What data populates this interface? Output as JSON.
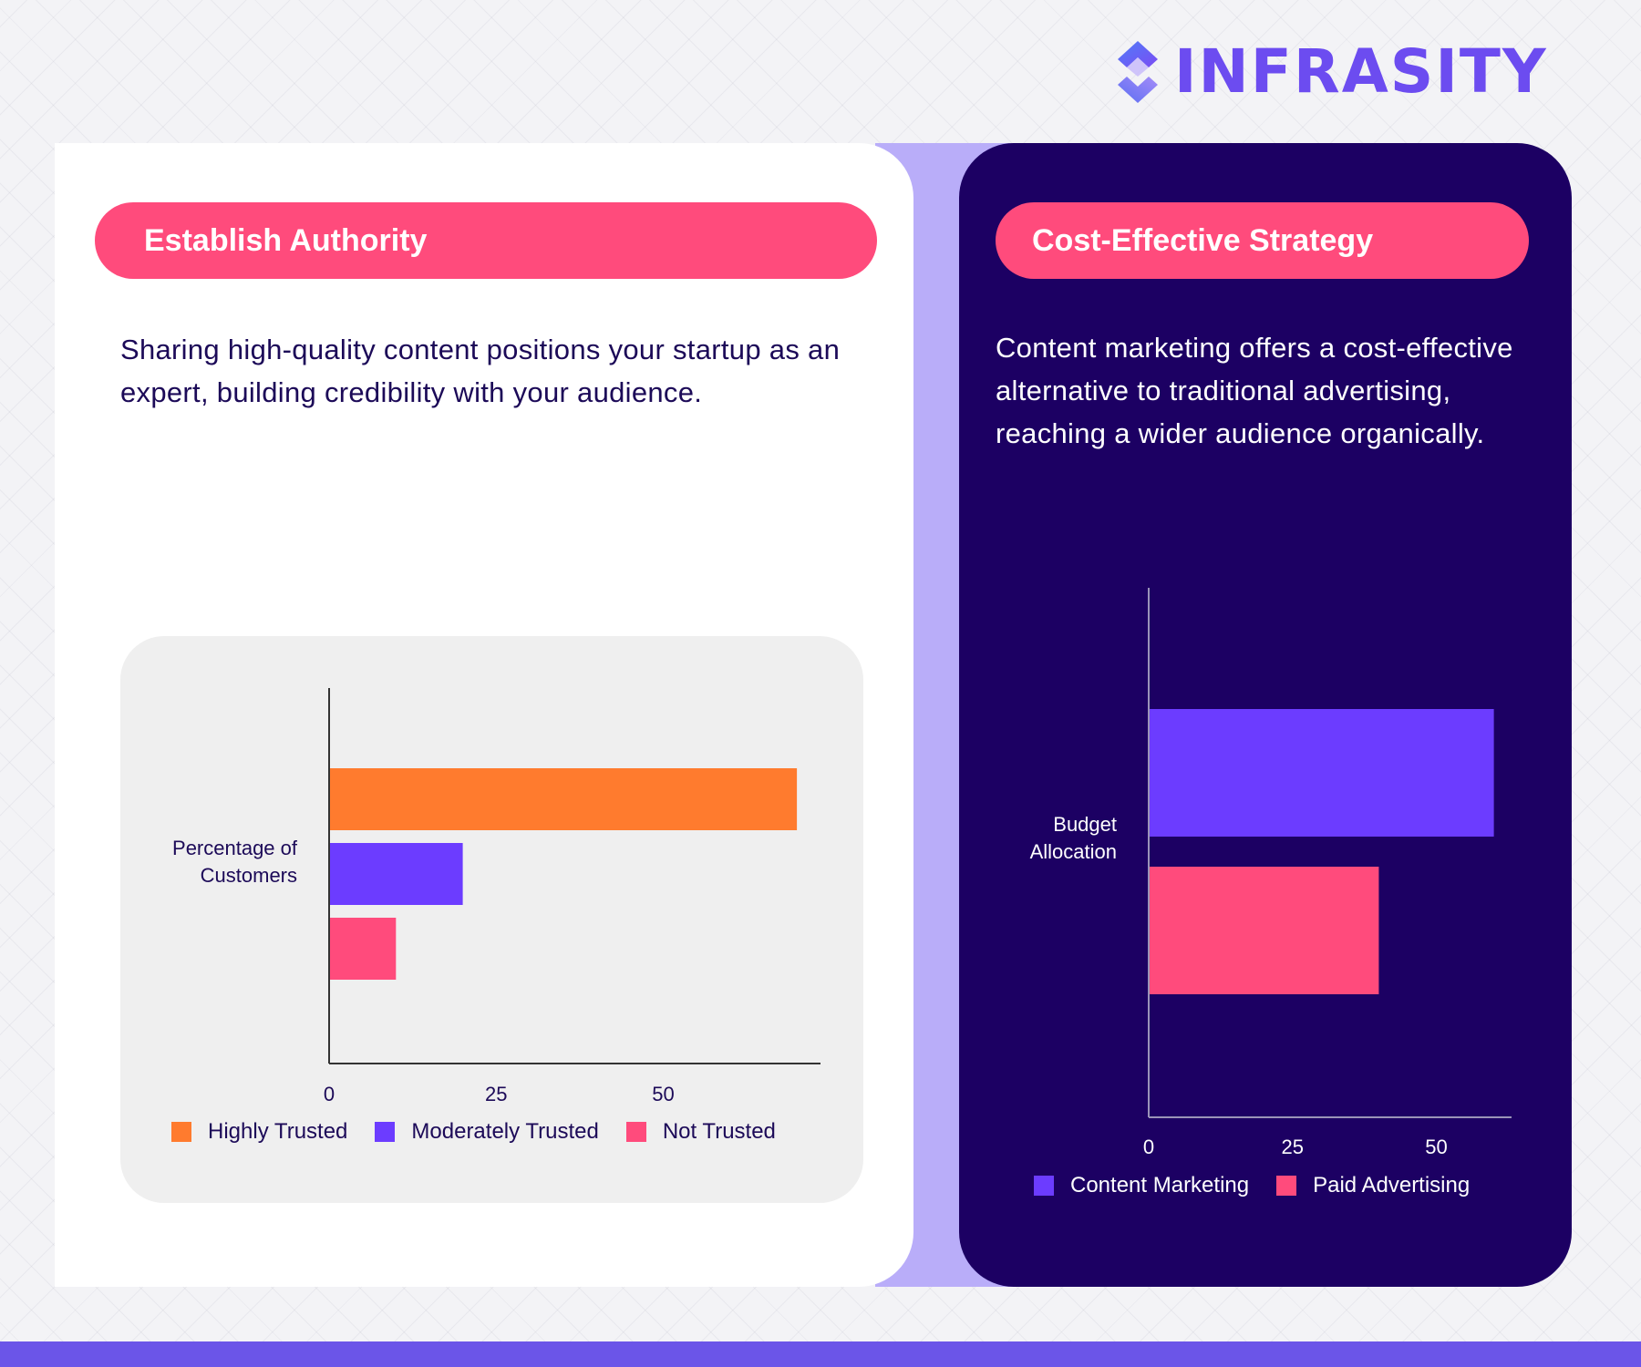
{
  "brand": {
    "name": "INFRASITY",
    "logo_icon": "diamond-logo-icon"
  },
  "left_panel": {
    "heading": "Establish Authority",
    "description": "Sharing high-quality content positions your startup as an expert, building credibility with your audience."
  },
  "right_panel": {
    "heading": "Cost-Effective Strategy",
    "description": "Content marketing offers a cost-effective alternative to traditional advertising, reaching a wider audience organically."
  },
  "colors": {
    "accent_pink": "#ff4b7c",
    "orange": "#ff7b2e",
    "purple": "#6c3cff",
    "dark_navy": "#1c0063",
    "lilac": "#b9adf9",
    "brand_purple": "#6c4cf0"
  },
  "chart_data": [
    {
      "type": "bar",
      "orientation": "horizontal",
      "categories": [
        "Percentage of Customers"
      ],
      "ylabel_lines": [
        "Percentage of",
        "Customers"
      ],
      "series": [
        {
          "name": "Highly Trusted",
          "values": [
            70
          ],
          "color": "#ff7b2e"
        },
        {
          "name": "Moderately Trusted",
          "values": [
            20
          ],
          "color": "#6c3cff"
        },
        {
          "name": "Not Trusted",
          "values": [
            10
          ],
          "color": "#ff4b7c"
        }
      ],
      "ticks": [
        0,
        25,
        50
      ],
      "tick_labels": [
        "0",
        "25",
        "50"
      ],
      "xlim": [
        0,
        74
      ],
      "grid": false,
      "legend": "bottom"
    },
    {
      "type": "bar",
      "orientation": "horizontal",
      "categories": [
        "Budget Allocation"
      ],
      "ylabel_lines": [
        "Budget",
        "Allocation"
      ],
      "series": [
        {
          "name": "Content Marketing",
          "values": [
            60
          ],
          "color": "#6c3cff"
        },
        {
          "name": "Paid Advertising",
          "values": [
            40
          ],
          "color": "#ff4b7c"
        }
      ],
      "ticks": [
        0,
        25,
        50
      ],
      "tick_labels": [
        "0",
        "25",
        "50"
      ],
      "xlim": [
        0,
        63
      ],
      "grid": false,
      "legend": "bottom"
    }
  ]
}
